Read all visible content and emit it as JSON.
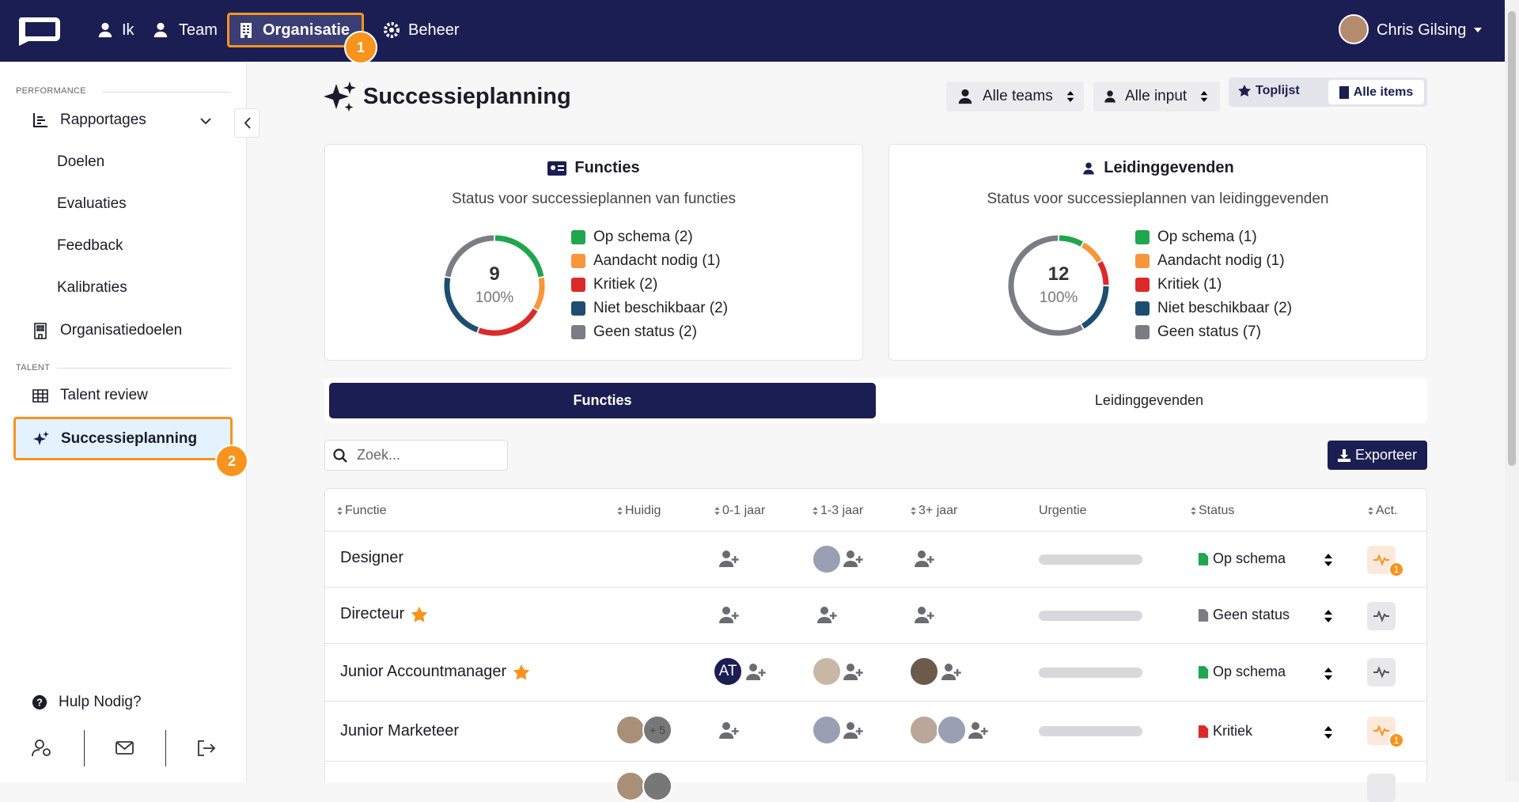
{
  "nav": {
    "items": [
      "Ik",
      "Team",
      "Organisatie",
      "Beheer"
    ],
    "user": "Chris Gilsing",
    "step": "1"
  },
  "sidebar": {
    "sections": [
      "PERFORMANCE",
      "TALENT"
    ],
    "items": [
      "Rapportages",
      "Doelen",
      "Evaluaties",
      "Feedback",
      "Kalibraties",
      "Organisatiedoelen",
      "Talent review",
      "Successieplanning"
    ],
    "step": "2",
    "help": "Hulp Nodig?"
  },
  "header": {
    "title": "Successieplanning",
    "filters": [
      "Alle teams",
      "Alle input"
    ],
    "toggle": [
      "Toplijst",
      "Alle items"
    ]
  },
  "cards": [
    {
      "title": "Functies",
      "subtitle": "Status voor successieplannen van functies",
      "total": 9,
      "percent": "100%",
      "legend": [
        {
          "label": "Op schema (2)",
          "value": 2,
          "color": "#1fa64e"
        },
        {
          "label": "Aandacht nodig (1)",
          "value": 1,
          "color": "#f7963b"
        },
        {
          "label": "Kritiek (2)",
          "value": 2,
          "color": "#dc2a2a"
        },
        {
          "label": "Niet beschikbaar (2)",
          "value": 2,
          "color": "#1d4e72"
        },
        {
          "label": "Geen status (2)",
          "value": 2,
          "color": "#7b7c84"
        }
      ]
    },
    {
      "title": "Leidinggevenden",
      "subtitle": "Status voor successieplannen van leidinggevenden",
      "total": 12,
      "percent": "100%",
      "legend": [
        {
          "label": "Op schema (1)",
          "value": 1,
          "color": "#1fa64e"
        },
        {
          "label": "Aandacht nodig (1)",
          "value": 1,
          "color": "#f7963b"
        },
        {
          "label": "Kritiek (1)",
          "value": 1,
          "color": "#dc2a2a"
        },
        {
          "label": "Niet beschikbaar (2)",
          "value": 2,
          "color": "#1d4e72"
        },
        {
          "label": "Geen status (7)",
          "value": 7,
          "color": "#7b7c84"
        }
      ]
    }
  ],
  "tabs": [
    "Functies",
    "Leidinggevenden"
  ],
  "search_placeholder": "Zoek...",
  "export": "Exporteer",
  "table": {
    "columns": [
      "Functie",
      "Huidig",
      "0-1 jaar",
      "1-3 jaar",
      "3+ jaar",
      "Urgentie",
      "Status",
      "Act."
    ],
    "rows": [
      {
        "name": "Designer",
        "status": "Op schema",
        "badge": "1"
      },
      {
        "name": "Directeur",
        "status": "Geen status"
      },
      {
        "name": "Junior Accountmanager",
        "initials": "AT",
        "status": "Op schema"
      },
      {
        "name": "Junior Marketeer",
        "more": "+ 5",
        "status": "Kritiek",
        "badge": "1"
      }
    ]
  }
}
